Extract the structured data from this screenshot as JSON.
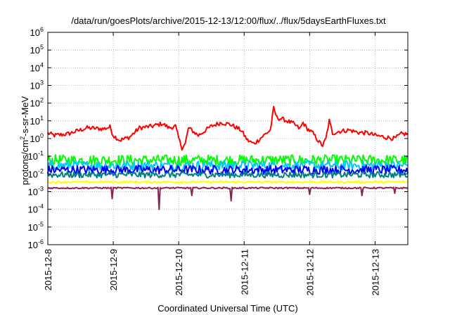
{
  "chart_data": {
    "type": "line",
    "title": "/data/run/goesPlots/archive/2015-12-13/12:00/flux/../flux/5daysEarthFluxes.txt",
    "xlabel": "Coordinated Universal Time (UTC)",
    "ylabel": {
      "base": "protons/cm",
      "sup": "2",
      "rest": "-s-sr-MeV"
    },
    "y_scale": "log",
    "ylim": [
      1e-06,
      1000000.0
    ],
    "y_ticks": [
      {
        "exp": "-6"
      },
      {
        "exp": "-5"
      },
      {
        "exp": "-4"
      },
      {
        "exp": "-3"
      },
      {
        "exp": "-2"
      },
      {
        "exp": "-1"
      },
      {
        "exp": "0"
      },
      {
        "exp": "1"
      },
      {
        "exp": "2"
      },
      {
        "exp": "3"
      },
      {
        "exp": "4"
      },
      {
        "exp": "5"
      },
      {
        "exp": "6"
      }
    ],
    "xlim": [
      "2015-12-08",
      "2015-12-13T12:00"
    ],
    "x_ticks": [
      "2015-12-8",
      "2015-12-9",
      "2015-12-10",
      "2015-12-11",
      "2015-12-12",
      "2015-12-13"
    ],
    "grid": true,
    "x_days_start": "2015-12-08",
    "series": [
      {
        "color": "#ff0000",
        "base": 2.5,
        "noise": 0.25,
        "anchors": [
          [
            0,
            2.0
          ],
          [
            0.1,
            1.5
          ],
          [
            0.3,
            1.8
          ],
          [
            0.6,
            4.0
          ],
          [
            0.85,
            3.5
          ],
          [
            0.95,
            4.5
          ],
          [
            1.0,
            1.5
          ],
          [
            1.1,
            0.8
          ],
          [
            1.25,
            1.2
          ],
          [
            1.4,
            4.0
          ],
          [
            1.6,
            5.0
          ],
          [
            1.75,
            7.0
          ],
          [
            1.85,
            4.0
          ],
          [
            1.95,
            5.0
          ],
          [
            2.0,
            1.0
          ],
          [
            2.05,
            0.3
          ],
          [
            2.1,
            0.5
          ],
          [
            2.15,
            4.0
          ],
          [
            2.3,
            1.5
          ],
          [
            2.5,
            5.0
          ],
          [
            2.65,
            8.0
          ],
          [
            2.8,
            6.0
          ],
          [
            2.95,
            3.0
          ],
          [
            3.05,
            0.8
          ],
          [
            3.15,
            0.5
          ],
          [
            3.3,
            1.5
          ],
          [
            3.4,
            3.0
          ],
          [
            3.45,
            50
          ],
          [
            3.5,
            15
          ],
          [
            3.6,
            12
          ],
          [
            3.75,
            7.0
          ],
          [
            3.85,
            3.5
          ],
          [
            3.9,
            8.0
          ],
          [
            3.95,
            4.0
          ],
          [
            4.05,
            2.0
          ],
          [
            4.15,
            0.6
          ],
          [
            4.2,
            0.4
          ],
          [
            4.25,
            1.0
          ],
          [
            4.3,
            10
          ],
          [
            4.35,
            2.0
          ],
          [
            4.45,
            2.5
          ],
          [
            4.6,
            3.0
          ],
          [
            4.75,
            2.2
          ],
          [
            4.9,
            2.0
          ],
          [
            5.0,
            1.5
          ],
          [
            5.15,
            1.2
          ],
          [
            5.3,
            1.0
          ],
          [
            5.4,
            1.8
          ],
          [
            5.5,
            1.8
          ]
        ]
      },
      {
        "color": "#00ff00",
        "base": 0.06,
        "noise": 0.6,
        "anchors": []
      },
      {
        "color": "#00c8ff",
        "base": 0.03,
        "noise": 0.55,
        "anchors": []
      },
      {
        "color": "#0000ff",
        "base": 0.017,
        "noise": 0.5,
        "anchors": []
      },
      {
        "color": "#008080",
        "base": 0.009,
        "noise": 0.35,
        "anchors": []
      },
      {
        "color": "#ffff00",
        "base": 0.0035,
        "noise": 0.12,
        "anchors": []
      },
      {
        "color": "#8b2252",
        "base": 0.0016,
        "noise": 0.08,
        "anchors": [
          [
            0.98,
            0.0004
          ],
          [
            1.7,
            0.0001
          ],
          [
            2.2,
            0.0006
          ],
          [
            2.8,
            0.0003
          ],
          [
            4.0,
            0.0007
          ],
          [
            4.8,
            0.0006
          ],
          [
            5.3,
            0.0008
          ]
        ]
      }
    ]
  }
}
